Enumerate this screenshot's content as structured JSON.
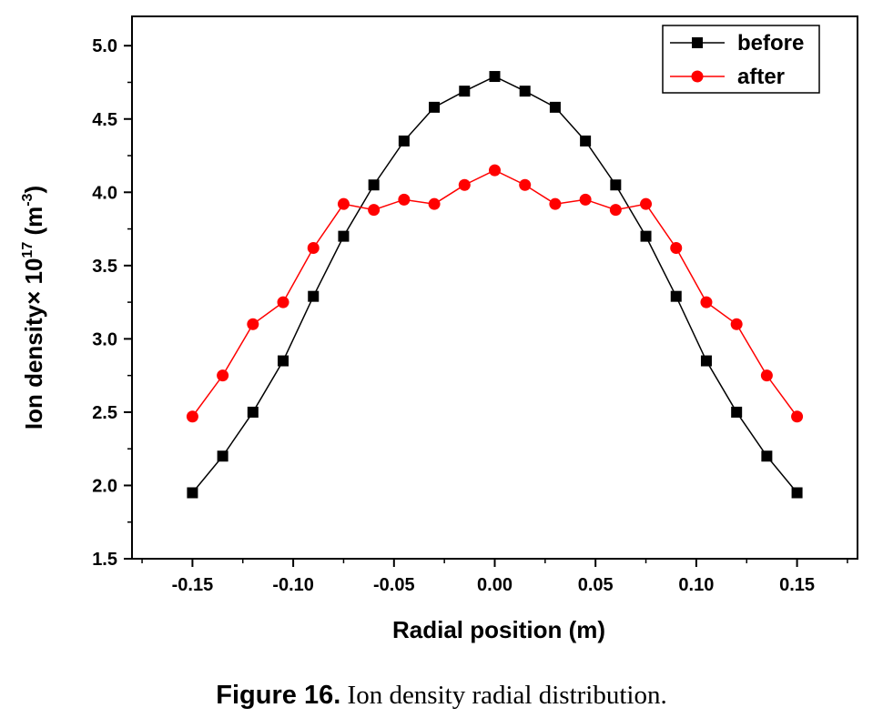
{
  "chart_data": {
    "type": "line",
    "xlabel": "Radial position (m)",
    "ylabel": {
      "prefix": "Ion density× 10",
      "exp1": "17",
      "unit_open": " (m",
      "exp2": "-3",
      "unit_close": ")"
    },
    "xlim": [
      -0.18,
      0.18
    ],
    "ylim": [
      1.5,
      5.2
    ],
    "xticks": [
      -0.15,
      -0.1,
      -0.05,
      0.0,
      0.05,
      0.1,
      0.15
    ],
    "xtick_labels": [
      "-0.15",
      "-0.10",
      "-0.05",
      "0.00",
      "0.05",
      "0.10",
      "0.15"
    ],
    "yticks": [
      1.5,
      2.0,
      2.5,
      3.0,
      3.5,
      4.0,
      4.5,
      5.0
    ],
    "ytick_labels": [
      "1.5",
      "2.0",
      "2.5",
      "3.0",
      "3.5",
      "4.0",
      "4.5",
      "5.0"
    ],
    "grid": false,
    "legend_position": "top-right",
    "x": [
      -0.15,
      -0.135,
      -0.12,
      -0.105,
      -0.09,
      -0.075,
      -0.06,
      -0.045,
      -0.03,
      -0.015,
      0.0,
      0.015,
      0.03,
      0.045,
      0.06,
      0.075,
      0.09,
      0.105,
      0.12,
      0.135,
      0.15
    ],
    "series": [
      {
        "name": "before",
        "color": "#000000",
        "marker": "square",
        "values": [
          1.95,
          2.2,
          2.5,
          2.85,
          3.29,
          3.7,
          4.05,
          4.35,
          4.58,
          4.69,
          4.79,
          4.69,
          4.58,
          4.35,
          4.05,
          3.7,
          3.29,
          2.85,
          2.5,
          2.2,
          1.95
        ]
      },
      {
        "name": "after",
        "color": "#ff0000",
        "marker": "circle",
        "values": [
          2.47,
          2.75,
          3.1,
          3.25,
          3.62,
          3.92,
          3.88,
          3.95,
          3.92,
          4.05,
          4.15,
          4.05,
          3.92,
          3.95,
          3.88,
          3.92,
          3.62,
          3.25,
          3.1,
          2.75,
          2.47
        ]
      }
    ]
  },
  "caption": {
    "label": "Figure 16.",
    "text": " Ion density radial distribution."
  }
}
